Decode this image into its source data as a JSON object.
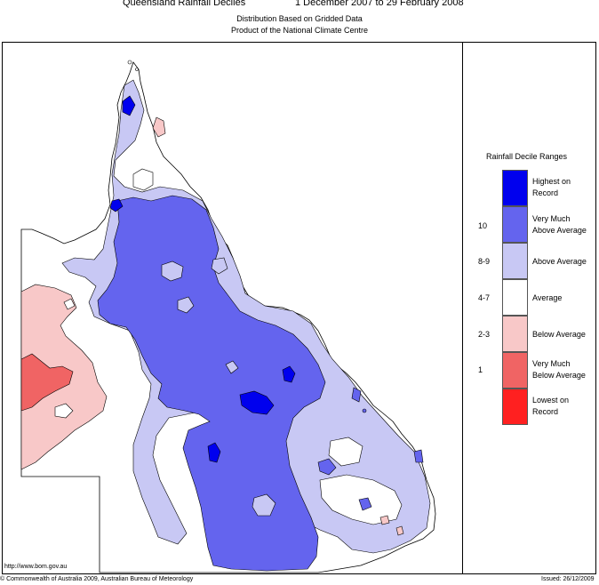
{
  "header": {
    "title": "Queensland Rainfall Deciles",
    "period": "1 December 2007 to 29 February 2008",
    "subtitle1": "Distribution Based on Gridded Data",
    "subtitle2": "Product of the National Climate Centre"
  },
  "legend": {
    "title": "Rainfall Decile Ranges",
    "items": [
      {
        "line1": "Highest on",
        "line2": "Record",
        "decile": "",
        "color": "#0000ee"
      },
      {
        "line1": "Very Much",
        "line2": "Above Average",
        "decile": "10",
        "color": "#6464ee"
      },
      {
        "line1": "Above Average",
        "line2": "",
        "decile": "8-9",
        "color": "#c8c8f4"
      },
      {
        "line1": "Average",
        "line2": "",
        "decile": "4-7",
        "color": "#ffffff"
      },
      {
        "line1": "Below Average",
        "line2": "",
        "decile": "2-3",
        "color": "#f8c8c8"
      },
      {
        "line1": "Very Much",
        "line2": "Below Average",
        "decile": "1",
        "color": "#f06464"
      },
      {
        "line1": "Lowest on",
        "line2": "Record",
        "decile": "",
        "color": "#ff2020"
      }
    ]
  },
  "footer": {
    "url": "http://www.bom.gov.au",
    "copyright": "© Commonwealth of Australia 2009, Australian Bureau of Meteorology",
    "issued": "Issued: 26/12/2009"
  },
  "colors": {
    "highest": "#0000ee",
    "very_much_above": "#6464ee",
    "above": "#c8c8f4",
    "average": "#ffffff",
    "below": "#f8c8c8",
    "very_much_below": "#f06464"
  }
}
